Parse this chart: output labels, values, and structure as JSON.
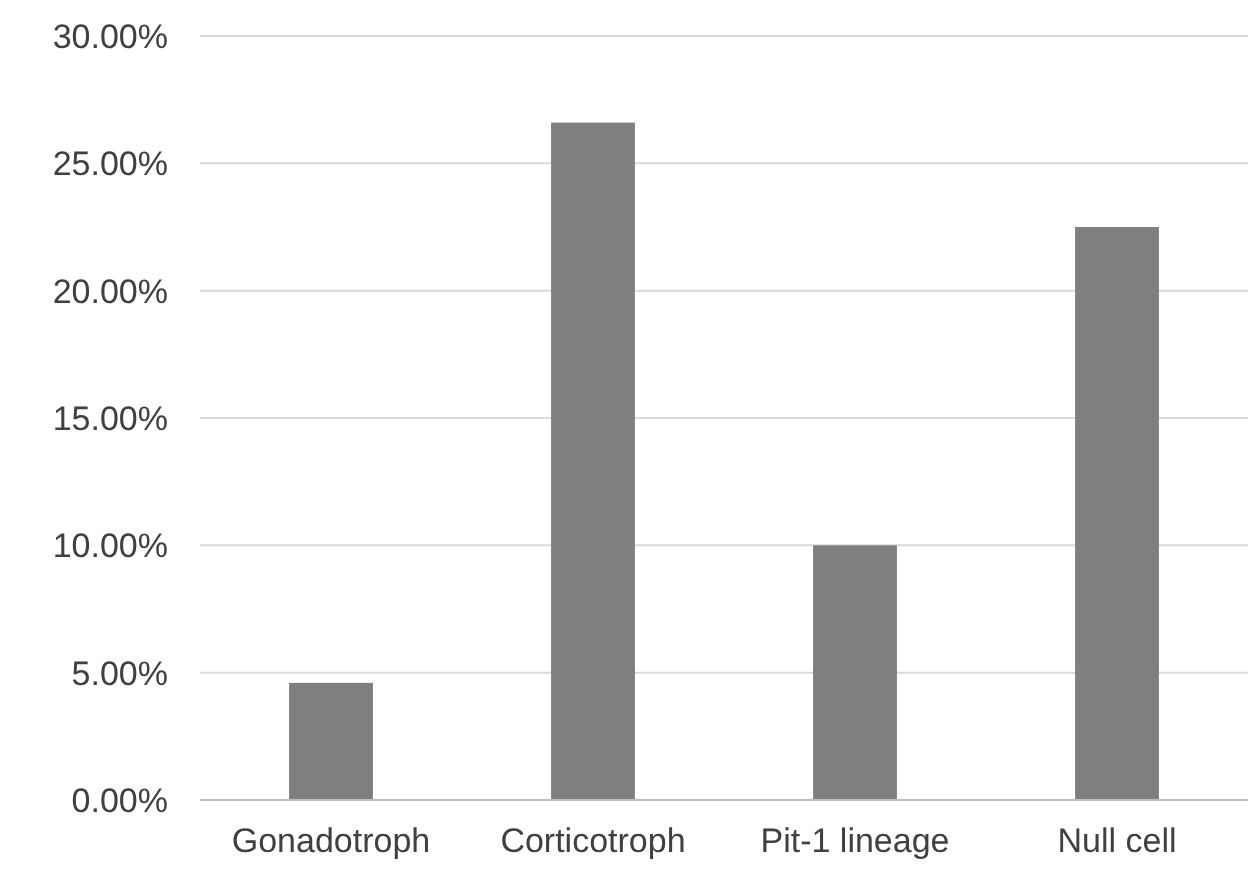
{
  "chart_data": {
    "type": "bar",
    "categories": [
      "Gonadotroph",
      "Corticotroph",
      "Pit-1 lineage",
      "Null cell"
    ],
    "values": [
      4.6,
      26.6,
      10.0,
      22.5
    ],
    "color": "#7f7f7f",
    "ylim": [
      0,
      30
    ],
    "yticks": [
      {
        "value": 0,
        "label": "0.00%"
      },
      {
        "value": 5,
        "label": "5.00%"
      },
      {
        "value": 10,
        "label": "10.00%"
      },
      {
        "value": 15,
        "label": "15.00%"
      },
      {
        "value": 20,
        "label": "20.00%"
      },
      {
        "value": 25,
        "label": "25.00%"
      },
      {
        "value": 30,
        "label": "30.00%"
      }
    ],
    "grid": "y"
  }
}
